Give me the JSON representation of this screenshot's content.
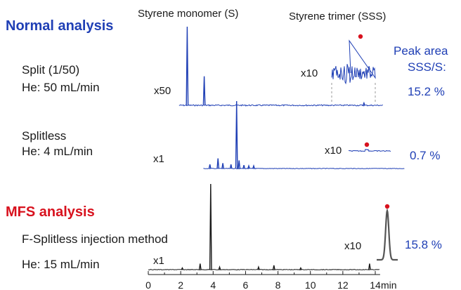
{
  "headers": {
    "monomer": "Styrene monomer (S)",
    "trimer": "Styrene trimer (SSS)"
  },
  "normal": {
    "title": "Normal analysis",
    "color": "#1f3fb5",
    "split": {
      "label1": "Split (1/50)",
      "label2": "He: 50 mL/min",
      "scale": "x50",
      "zoom": "x10",
      "percent": "15.2 %"
    },
    "splitless": {
      "label1": "Splitless",
      "label2": "He: 4 mL/min",
      "scale": "x1",
      "zoom": "x10",
      "percent": "0.7 %"
    }
  },
  "peak_area": {
    "label1": "Peak area",
    "label2": "SSS/S:"
  },
  "mfs": {
    "title": "MFS analysis",
    "color": "#d8121e",
    "label1": "F-Splitless injection method",
    "label2": "He: 15 mL/min",
    "scale": "x1",
    "zoom": "x10",
    "percent": "15.8 %"
  },
  "chart_data": {
    "type": "line",
    "xlabel": "min",
    "x_ticks": [
      "0",
      "2",
      "4",
      "6",
      "8",
      "10",
      "12",
      "14"
    ],
    "xlim": [
      0,
      14.3
    ],
    "series": [
      {
        "color": "#1f3fb5",
        "baseline_start_min": 1.9,
        "baseline_end_min": 14.5,
        "peaks": [
          {
            "x": 2.4,
            "height": 1.0
          },
          {
            "x": 3.45,
            "height": 0.37
          },
          {
            "x": 13.3,
            "height": 0.03
          }
        ]
      },
      {
        "color": "#1f3fb5",
        "baseline_start_min": 3.4,
        "baseline_end_min": 15.8,
        "peaks": [
          {
            "x": 3.8,
            "height": 0.06
          },
          {
            "x": 4.3,
            "height": 0.15
          },
          {
            "x": 4.6,
            "height": 0.08
          },
          {
            "x": 5.1,
            "height": 0.06
          },
          {
            "x": 5.45,
            "height": 1.0
          },
          {
            "x": 5.6,
            "height": 0.12
          },
          {
            "x": 5.9,
            "height": 0.05
          },
          {
            "x": 6.2,
            "height": 0.04
          },
          {
            "x": 6.5,
            "height": 0.04
          }
        ]
      },
      {
        "color": "#1a1a1a",
        "baseline_start_min": 0,
        "baseline_end_min": 14.3,
        "peaks": [
          {
            "x": 2.1,
            "height": 0.02
          },
          {
            "x": 3.2,
            "height": 0.07
          },
          {
            "x": 3.85,
            "height": 1.0
          },
          {
            "x": 4.4,
            "height": 0.03
          },
          {
            "x": 6.8,
            "height": 0.03
          },
          {
            "x": 7.75,
            "height": 0.05
          },
          {
            "x": 9.4,
            "height": 0.02
          },
          {
            "x": 13.65,
            "height": 0.07
          }
        ]
      }
    ]
  }
}
